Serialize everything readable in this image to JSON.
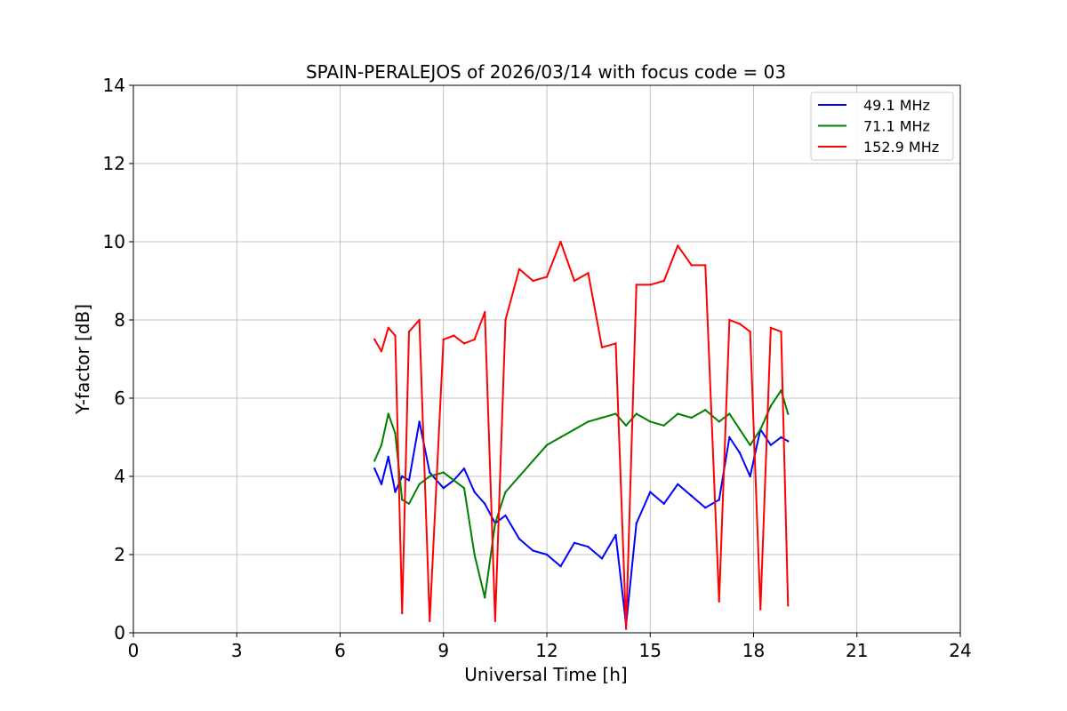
{
  "chart_data": {
    "type": "line",
    "title": "SPAIN-PERALEJOS of 2026/03/14 with focus code = 03",
    "xlabel": "Universal Time [h]",
    "ylabel": "Y-factor [dB]",
    "xlim": [
      0,
      24
    ],
    "ylim": [
      0,
      14
    ],
    "xticks": [
      0,
      3,
      6,
      9,
      12,
      15,
      18,
      21,
      24
    ],
    "yticks": [
      0,
      2,
      4,
      6,
      8,
      10,
      12,
      14
    ],
    "grid": true,
    "legend_position": "top-right",
    "series": [
      {
        "name": "49.1 MHz",
        "color": "#0000ff",
        "x": [
          7.0,
          7.2,
          7.4,
          7.6,
          7.8,
          8.0,
          8.3,
          8.6,
          9.0,
          9.3,
          9.6,
          9.9,
          10.2,
          10.5,
          10.8,
          11.2,
          11.6,
          12.0,
          12.4,
          12.8,
          13.2,
          13.6,
          14.0,
          14.3,
          14.6,
          15.0,
          15.4,
          15.8,
          16.2,
          16.6,
          17.0,
          17.3,
          17.6,
          17.9,
          18.2,
          18.5,
          18.8,
          19.0
        ],
        "y": [
          4.2,
          3.8,
          4.5,
          3.6,
          4.0,
          3.9,
          5.4,
          4.1,
          3.7,
          3.9,
          4.2,
          3.6,
          3.3,
          2.8,
          3.0,
          2.4,
          2.1,
          2.0,
          1.7,
          2.3,
          2.2,
          1.9,
          2.5,
          0.2,
          2.8,
          3.6,
          3.3,
          3.8,
          3.5,
          3.2,
          3.4,
          5.0,
          4.6,
          4.0,
          5.2,
          4.8,
          5.0,
          4.9
        ]
      },
      {
        "name": "71.1 MHz",
        "color": "#008000",
        "x": [
          7.0,
          7.2,
          7.4,
          7.6,
          7.8,
          8.0,
          8.3,
          8.6,
          9.0,
          9.3,
          9.6,
          9.9,
          10.2,
          10.5,
          10.8,
          11.2,
          11.6,
          12.0,
          12.4,
          12.8,
          13.2,
          13.6,
          14.0,
          14.3,
          14.6,
          15.0,
          15.4,
          15.8,
          16.2,
          16.6,
          17.0,
          17.3,
          17.6,
          17.9,
          18.2,
          18.5,
          18.8,
          19.0
        ],
        "y": [
          4.4,
          4.8,
          5.6,
          5.1,
          3.4,
          3.3,
          3.8,
          4.0,
          4.1,
          3.9,
          3.7,
          2.0,
          0.9,
          2.8,
          3.6,
          4.0,
          4.4,
          4.8,
          5.0,
          5.2,
          5.4,
          5.5,
          5.6,
          5.3,
          5.6,
          5.4,
          5.3,
          5.6,
          5.5,
          5.7,
          5.4,
          5.6,
          5.2,
          4.8,
          5.2,
          5.8,
          6.2,
          5.6
        ]
      },
      {
        "name": "152.9 MHz",
        "color": "#ff0000",
        "x": [
          7.0,
          7.2,
          7.4,
          7.6,
          7.8,
          8.0,
          8.3,
          8.6,
          9.0,
          9.3,
          9.6,
          9.9,
          10.2,
          10.5,
          10.8,
          11.2,
          11.6,
          12.0,
          12.4,
          12.8,
          13.2,
          13.6,
          14.0,
          14.3,
          14.6,
          15.0,
          15.4,
          15.8,
          16.2,
          16.6,
          17.0,
          17.3,
          17.6,
          17.9,
          18.2,
          18.5,
          18.8,
          19.0
        ],
        "y": [
          7.5,
          7.2,
          7.8,
          7.6,
          0.5,
          7.7,
          8.0,
          0.3,
          7.5,
          7.6,
          7.4,
          7.5,
          8.2,
          0.3,
          8.0,
          9.3,
          9.0,
          9.1,
          10.0,
          9.0,
          9.2,
          7.3,
          7.4,
          0.1,
          8.9,
          8.9,
          9.0,
          9.9,
          9.4,
          9.4,
          0.8,
          8.0,
          7.9,
          7.7,
          0.6,
          7.8,
          7.7,
          0.7
        ]
      }
    ]
  }
}
